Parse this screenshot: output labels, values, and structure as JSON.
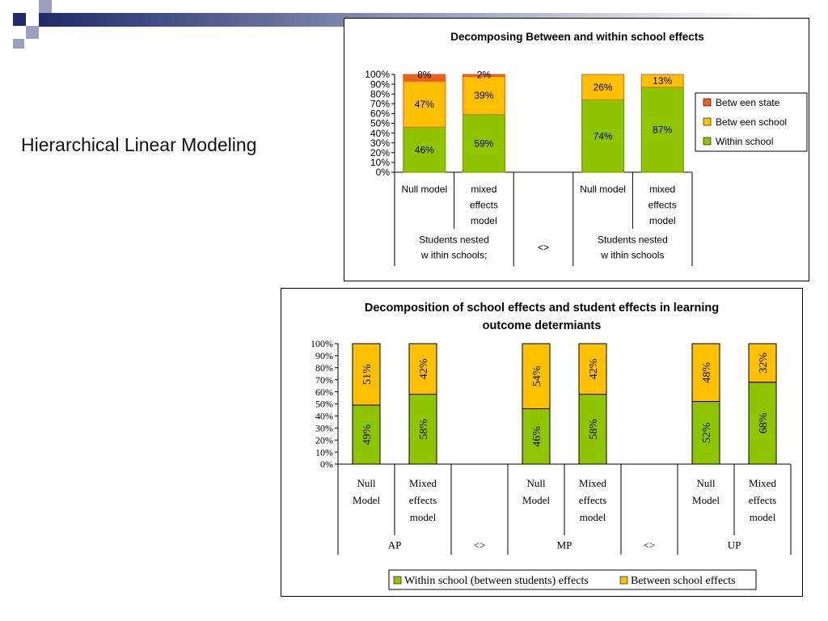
{
  "slide": {
    "title": "Hierarchical Linear Modeling"
  },
  "colors": {
    "between_state": "#e8621a",
    "between_school": "#ffc000",
    "within_school": "#8fc400",
    "deco_navy": "#1f2a6b",
    "deco_gray": "#9aa0c0"
  },
  "chart_data": [
    {
      "type": "bar",
      "stacked": true,
      "title": "Decomposing Between and within school effects",
      "ylim": [
        0,
        100
      ],
      "yticks": [
        "0%",
        "10%",
        "20%",
        "30%",
        "40%",
        "50%",
        "60%",
        "70%",
        "80%",
        "90%",
        "100%"
      ],
      "legend_position": "right",
      "slots": [
        {
          "label": [
            "Null model"
          ],
          "bar": true
        },
        {
          "label": [
            "mixed",
            "effects",
            "model"
          ],
          "bar": true
        },
        {
          "label": [],
          "bar": false
        },
        {
          "label": [
            "Null model"
          ],
          "bar": true
        },
        {
          "label": [
            "mixed",
            "effects",
            "model"
          ],
          "bar": true
        }
      ],
      "groups": [
        {
          "label": [
            "Students nested",
            "w ithin schools;"
          ],
          "span": 2
        },
        {
          "label": [
            "<>"
          ],
          "span": 1
        },
        {
          "label": [
            "Students nested",
            "w ithin schools"
          ],
          "span": 2
        }
      ],
      "series": [
        {
          "name": "Within school",
          "color": "#8fc400",
          "values": [
            46,
            59,
            null,
            74,
            87
          ],
          "labels": [
            "46%",
            "59%",
            "",
            "74%",
            "87%"
          ]
        },
        {
          "name": "Betw een school",
          "color": "#ffc000",
          "values": [
            47,
            39,
            null,
            26,
            13
          ],
          "labels": [
            "47%",
            "39%",
            "",
            "26%",
            "13%"
          ]
        },
        {
          "name": "Betw een state",
          "color": "#e8621a",
          "values": [
            8,
            2,
            null,
            0,
            0
          ],
          "labels": [
            "8%",
            "2%",
            "",
            "",
            ""
          ]
        }
      ],
      "legend_order": [
        2,
        1,
        0
      ]
    },
    {
      "type": "bar",
      "stacked": true,
      "title": [
        "Decomposition of school effects and student effects in learning",
        "outcome determiants"
      ],
      "ylim": [
        0,
        100
      ],
      "yticks": [
        "0%",
        "10%",
        "20%",
        "30%",
        "40%",
        "50%",
        "60%",
        "70%",
        "80%",
        "90%",
        "100%"
      ],
      "legend_position": "bottom",
      "slots": [
        {
          "label": [
            "Null",
            "Model"
          ],
          "bar": true
        },
        {
          "label": [
            "Mixed",
            "effects",
            "model"
          ],
          "bar": true
        },
        {
          "label": [],
          "bar": false
        },
        {
          "label": [
            "Null",
            "Model"
          ],
          "bar": true
        },
        {
          "label": [
            "Mixed",
            "effects",
            "model"
          ],
          "bar": true
        },
        {
          "label": [],
          "bar": false
        },
        {
          "label": [
            "Null",
            "Model"
          ],
          "bar": true
        },
        {
          "label": [
            "Mixed",
            "effects",
            "model"
          ],
          "bar": true
        }
      ],
      "groups": [
        {
          "label": [
            "AP"
          ],
          "span": 2
        },
        {
          "label": [
            "<>"
          ],
          "span": 1
        },
        {
          "label": [
            "MP"
          ],
          "span": 2
        },
        {
          "label": [
            "<>"
          ],
          "span": 1
        },
        {
          "label": [
            "UP"
          ],
          "span": 2
        }
      ],
      "series": [
        {
          "name": "Within school (between students) effects",
          "color": "#8fc400",
          "values": [
            49,
            58,
            null,
            46,
            58,
            null,
            52,
            68
          ],
          "labels": [
            "49%",
            "58%",
            "",
            "46%",
            "58%",
            "",
            "52%",
            "68%"
          ]
        },
        {
          "name": "Between school effects",
          "color": "#ffc000",
          "values": [
            51,
            42,
            null,
            54,
            42,
            null,
            48,
            32
          ],
          "labels": [
            "51%",
            "42%",
            "",
            "54%",
            "42%",
            "",
            "48%",
            "32%"
          ]
        }
      ],
      "legend_order": [
        0,
        1
      ]
    }
  ]
}
